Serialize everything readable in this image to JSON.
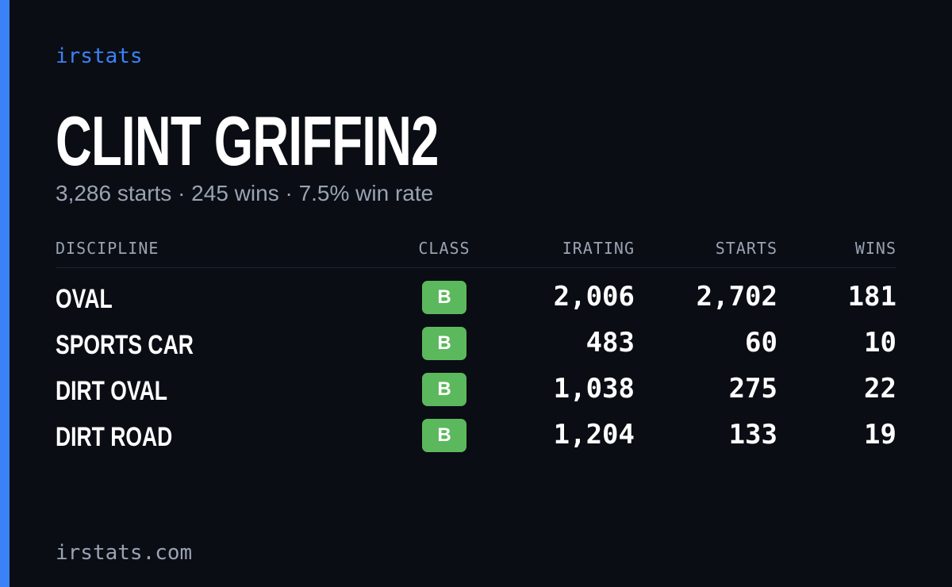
{
  "brand": "irstats",
  "title": "CLINT GRIFFIN2",
  "subtitle": "3,286 starts · 245 wins · 7.5% win rate",
  "table": {
    "headers": [
      "DISCIPLINE",
      "CLASS",
      "IRATING",
      "STARTS",
      "WINS"
    ],
    "rows": [
      [
        "OVAL",
        "B",
        "2,006",
        "2,702",
        "181"
      ],
      [
        "SPORTS CAR",
        "B",
        "483",
        "60",
        "10"
      ],
      [
        "DIRT OVAL",
        "B",
        "1,038",
        "275",
        "22"
      ],
      [
        "DIRT ROAD",
        "B",
        "1,204",
        "133",
        "19"
      ]
    ]
  },
  "footer": "irstats.com"
}
